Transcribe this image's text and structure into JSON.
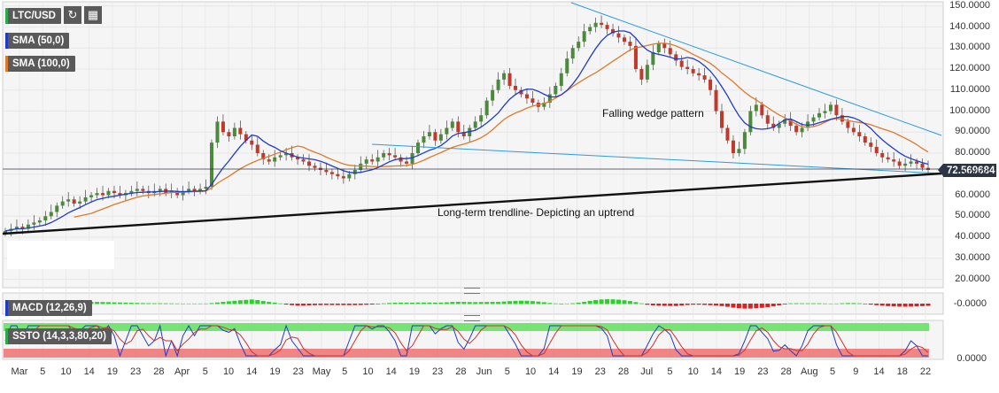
{
  "toolbar": {
    "symbol": "LTC/USD",
    "refresh_icon": "refresh-icon",
    "indicators_icon": "indicators-icon"
  },
  "indicators": {
    "sma50": {
      "label": "SMA (50,0)",
      "color": "#1f3cc8"
    },
    "sma100": {
      "label": "SMA (100,0)",
      "color": "#e0792a"
    },
    "macd": {
      "label": "MACD (12,26,9)",
      "value": "-0.0000"
    },
    "ssto": {
      "label": "SSTO (14,3,3,80,20)",
      "value": "0.0000"
    }
  },
  "annotations": {
    "wedge": "Falling wedge pattern",
    "trend": "Long-term trendline- Depicting an uptrend"
  },
  "current_price": "72.569684",
  "colors": {
    "up": "#4a8a3a",
    "down": "#c0392b",
    "sma50": "#1f3cc8",
    "sma100": "#e0792a",
    "wedge_lines": "#2a9be0",
    "trendline": "#111111",
    "overbought_band": "#5ee05e",
    "oversold_band": "#f07070"
  },
  "chart_data": {
    "type": "candlestick",
    "pair": "LTC/USD",
    "y_ticks": [
      "150.0000",
      "140.0000",
      "130.0000",
      "120.0000",
      "110.0000",
      "100.0000",
      "90.0000",
      "80.0000",
      "70.0000",
      "60.0000",
      "50.0000",
      "40.0000",
      "30.0000",
      "20.0000"
    ],
    "ylim": [
      16,
      152
    ],
    "x_ticks": [
      "Mar",
      "5",
      "10",
      "14",
      "19",
      "23",
      "28",
      "Apr",
      "5",
      "10",
      "14",
      "19",
      "23",
      "May",
      "5",
      "10",
      "14",
      "19",
      "23",
      "28",
      "Jun",
      "5",
      "10",
      "14",
      "19",
      "23",
      "28",
      "Jul",
      "5",
      "10",
      "14",
      "19",
      "23",
      "28",
      "Aug",
      "5",
      "9",
      "14",
      "18",
      "22"
    ],
    "closes": [
      43,
      44,
      45,
      44,
      46,
      47,
      48,
      50,
      52,
      55,
      57,
      58,
      56,
      57,
      59,
      60,
      61,
      60,
      62,
      61,
      60,
      61,
      62,
      63,
      62,
      61,
      62,
      63,
      61,
      62,
      60,
      62,
      63,
      62,
      63,
      64,
      85,
      95,
      90,
      88,
      92,
      89,
      86,
      84,
      80,
      77,
      76,
      78,
      79,
      80,
      78,
      77,
      76,
      74,
      73,
      72,
      71,
      70,
      69,
      68,
      70,
      72,
      75,
      77,
      76,
      78,
      80,
      79,
      78,
      76,
      75,
      80,
      85,
      88,
      90,
      86,
      89,
      92,
      95,
      90,
      88,
      92,
      95,
      98,
      105,
      110,
      115,
      118,
      112,
      110,
      108,
      106,
      104,
      102,
      104,
      108,
      112,
      118,
      125,
      130,
      133,
      138,
      140,
      142,
      141,
      139,
      137,
      135,
      133,
      131,
      120,
      115,
      122,
      128,
      132,
      130,
      127,
      124,
      121,
      120,
      118,
      117,
      115,
      110,
      100,
      92,
      86,
      80,
      82,
      90,
      100,
      103,
      98,
      94,
      92,
      94,
      96,
      93,
      90,
      92,
      95,
      97,
      99,
      100,
      103,
      98,
      95,
      92,
      90,
      88,
      85,
      83,
      80,
      78,
      77,
      76,
      74,
      75,
      76,
      75,
      73,
      72
    ]
  }
}
